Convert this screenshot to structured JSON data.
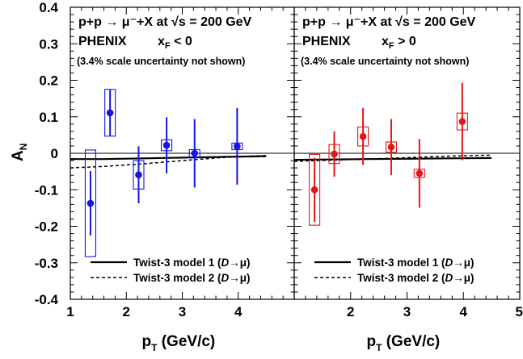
{
  "chart_data": [
    {
      "type": "scatter",
      "panel": "left",
      "title": "p+p → μ⁻+X at √s = 200 GeV",
      "subtitle": "PHENIX",
      "condition": "x_F < 0",
      "note": "(3.4% scale uncertainty not shown)",
      "xlabel": "p_T (GeV/c)",
      "ylabel": "A_N",
      "xlim": [
        1,
        5
      ],
      "ylim": [
        -0.4,
        0.4
      ],
      "x_ticks": [
        "1",
        "2",
        "3",
        "4"
      ],
      "y_ticks": [
        "0.4",
        "0.3",
        "0.2",
        "0.1",
        "0",
        "-0.1",
        "-0.2",
        "-0.3",
        "-0.4"
      ],
      "color": "#1515e6",
      "series": [
        {
          "x": [
            1.36,
            1.71,
            2.22,
            2.72,
            3.22,
            3.98
          ],
          "y": [
            -0.137,
            0.111,
            -0.059,
            0.022,
            0.0,
            0.019
          ],
          "stat_err": [
            0.088,
            0.063,
            0.078,
            0.077,
            0.094,
            0.105
          ],
          "syst_err": [
            0.146,
            0.064,
            0.039,
            0.015,
            0.01,
            0.009
          ]
        }
      ],
      "models": [
        {
          "name": "Twist-3 model 1 (D→μ)",
          "style": "solid",
          "x": [
            1.0,
            1.6,
            2.3,
            3.0,
            3.7,
            4.5
          ],
          "y": [
            -0.016,
            -0.016,
            -0.014,
            -0.012,
            -0.01,
            -0.008
          ]
        },
        {
          "name": "Twist-3 model 2 (D→μ)",
          "style": "dashed",
          "x": [
            1.0,
            1.6,
            2.3,
            3.0,
            3.7,
            4.5
          ],
          "y": [
            -0.04,
            -0.036,
            -0.029,
            -0.02,
            -0.012,
            -0.006
          ]
        }
      ],
      "legend": {
        "position": "bottom-right",
        "entries": [
          {
            "prefix": "Twist-3 model 1 (",
            "italic": "D",
            "suffix": "→μ)",
            "style": "solid"
          },
          {
            "prefix": "Twist-3 model 2 (",
            "italic": "D",
            "suffix": "→μ)",
            "style": "dashed"
          }
        ]
      }
    },
    {
      "type": "scatter",
      "panel": "right",
      "title": "p+p → μ⁻+X at √s = 200 GeV",
      "subtitle": "PHENIX",
      "condition": "x_F > 0",
      "note": "(3.4% scale uncertainty not shown)",
      "xlabel": "p_T (GeV/c)",
      "xlim": [
        1,
        5
      ],
      "ylim": [
        -0.4,
        0.4
      ],
      "x_ticks": [
        "2",
        "3",
        "4",
        "5"
      ],
      "color": "#e61515",
      "series": [
        {
          "x": [
            1.36,
            1.71,
            2.22,
            2.72,
            3.22,
            3.98
          ],
          "y": [
            -0.1,
            -0.002,
            0.046,
            0.017,
            -0.055,
            0.087
          ],
          "stat_err": [
            0.088,
            0.062,
            0.078,
            0.077,
            0.094,
            0.106
          ],
          "syst_err": [
            0.097,
            0.026,
            0.026,
            0.014,
            0.011,
            0.023
          ]
        }
      ],
      "models": [
        {
          "name": "Twist-3 model 1 (D→μ)",
          "style": "solid",
          "x": [
            1.0,
            1.6,
            2.3,
            3.0,
            3.7,
            4.5
          ],
          "y": [
            -0.018,
            -0.017,
            -0.016,
            -0.015,
            -0.014,
            -0.013
          ]
        },
        {
          "name": "Twist-3 model 2 (D→μ)",
          "style": "dashed",
          "x": [
            1.0,
            1.6,
            2.3,
            3.0,
            3.7,
            4.5
          ],
          "y": [
            -0.022,
            -0.019,
            -0.016,
            -0.012,
            -0.008,
            -0.005
          ]
        }
      ],
      "legend": {
        "position": "bottom-right",
        "entries": [
          {
            "prefix": "Twist-3 model 1 (",
            "italic": "D",
            "suffix": "→μ)",
            "style": "solid"
          },
          {
            "prefix": "Twist-3 model 2 (",
            "italic": "D",
            "suffix": "→μ)",
            "style": "dashed"
          }
        ]
      }
    }
  ]
}
